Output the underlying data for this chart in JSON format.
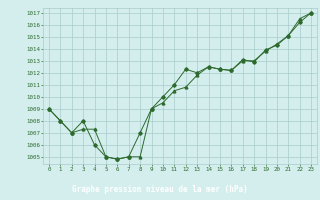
{
  "series1_x": [
    0,
    1,
    2,
    3,
    4,
    5,
    6,
    7,
    8,
    9,
    10,
    11,
    12,
    13,
    14,
    15,
    16,
    17,
    18,
    19,
    20,
    21,
    22,
    23
  ],
  "series1_y": [
    1009,
    1008,
    1007,
    1008,
    1006,
    1005,
    1004.8,
    1005,
    1007,
    1009,
    1010,
    1011,
    1012.3,
    1012,
    1012.5,
    1012.3,
    1012.2,
    1013.1,
    1012.9,
    1013.9,
    1014.3,
    1015.1,
    1016.2,
    1017
  ],
  "series2_x": [
    0,
    1,
    2,
    3,
    4,
    5,
    6,
    7,
    8,
    9,
    10,
    11,
    12,
    13,
    14,
    15,
    16,
    17,
    18,
    19,
    20,
    21,
    22,
    23
  ],
  "series2_y": [
    1009,
    1008,
    1007,
    1007.3,
    1007.3,
    1005,
    1004.8,
    1005,
    1005,
    1009,
    1009.5,
    1010.5,
    1010.8,
    1011.8,
    1012.5,
    1012.3,
    1012.2,
    1013,
    1013,
    1013.8,
    1014.4,
    1015.1,
    1016.5,
    1017
  ],
  "line_color": "#2d6a2d",
  "bg_color": "#d4eeee",
  "grid_color": "#aacccc",
  "xlabel": "Graphe pression niveau de la mer (hPa)",
  "xlabel_bg": "#2d6a2d",
  "xlabel_fg": "#ffffff",
  "yticks": [
    1005,
    1006,
    1007,
    1008,
    1009,
    1010,
    1011,
    1012,
    1013,
    1014,
    1015,
    1016,
    1017
  ],
  "xticks": [
    0,
    1,
    2,
    3,
    4,
    5,
    6,
    7,
    8,
    9,
    10,
    11,
    12,
    13,
    14,
    15,
    16,
    17,
    18,
    19,
    20,
    21,
    22,
    23
  ],
  "ylim": [
    1004.4,
    1017.4
  ],
  "xlim": [
    -0.5,
    23.5
  ]
}
